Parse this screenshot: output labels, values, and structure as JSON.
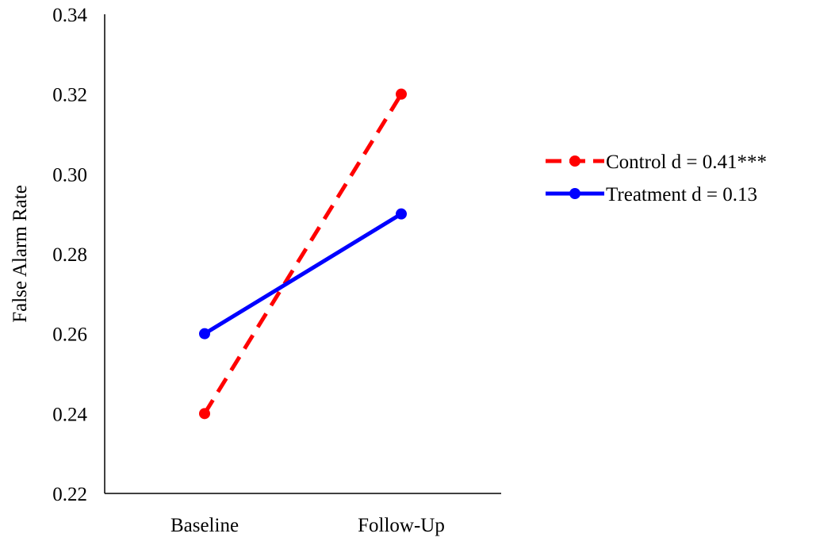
{
  "chart_data": {
    "type": "line",
    "title": "",
    "xlabel": "",
    "ylabel": "False Alarm Rate",
    "categories": [
      "Baseline",
      "Follow-Up"
    ],
    "ylim": [
      0.22,
      0.34
    ],
    "yticks": [
      "0.22",
      "0.24",
      "0.26",
      "0.28",
      "0.30",
      "0.32",
      "0.34"
    ],
    "grid": false,
    "legend_position": "right",
    "series": [
      {
        "name": "Control d = 0.41***",
        "values": [
          0.24,
          0.32
        ],
        "color": "#ff0000",
        "line_style": "dashed",
        "marker": "circle"
      },
      {
        "name": "Treatment d = 0.13",
        "values": [
          0.26,
          0.29
        ],
        "color": "#0000ff",
        "line_style": "solid",
        "marker": "circle"
      }
    ]
  }
}
